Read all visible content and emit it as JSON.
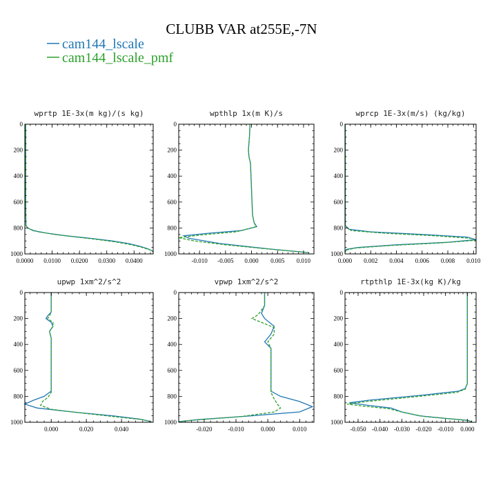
{
  "title": "CLUBB VAR at255E,-7N",
  "colors": {
    "cam144_lscale": "#1f77b4",
    "cam144_lscale_pmf": "#2ca02c"
  },
  "legend": [
    {
      "label": "cam144_lscale",
      "color": "#1f77b4",
      "dash": "solid"
    },
    {
      "label": "cam144_lscale_pmf",
      "color": "#2ca02c",
      "dash": "dashed"
    }
  ],
  "chart_data": [
    {
      "type": "line",
      "title": "wprtp  1E-3x(m kg)/(s kg)",
      "xlim": [
        0,
        0.047
      ],
      "ylim": [
        1000,
        0
      ],
      "xticks": [
        0,
        0.01,
        0.02,
        0.03,
        0.04
      ],
      "xtick_labels": [
        "0.0000",
        "0.0100",
        "0.0200",
        "0.0300",
        "0.0400"
      ],
      "yticks": [
        0,
        200,
        400,
        600,
        800,
        1000
      ],
      "ytick_labels": [
        "0",
        "200",
        "400",
        "600",
        "800",
        "1000"
      ],
      "series": [
        {
          "name": "cam144_lscale",
          "points": [
            [
              0.0003,
              0
            ],
            [
              0.0003,
              200
            ],
            [
              0.0003,
              400
            ],
            [
              0.0003,
              600
            ],
            [
              0.0004,
              780
            ],
            [
              0.001,
              800
            ],
            [
              0.003,
              820
            ],
            [
              0.008,
              840
            ],
            [
              0.015,
              860
            ],
            [
              0.024,
              880
            ],
            [
              0.032,
              900
            ],
            [
              0.038,
              920
            ],
            [
              0.042,
              940
            ],
            [
              0.045,
              960
            ],
            [
              0.047,
              980
            ]
          ]
        },
        {
          "name": "cam144_lscale_pmf",
          "points": [
            [
              0.0003,
              0
            ],
            [
              0.0003,
              200
            ],
            [
              0.0003,
              400
            ],
            [
              0.0003,
              600
            ],
            [
              0.0004,
              790
            ],
            [
              0.002,
              810
            ],
            [
              0.005,
              830
            ],
            [
              0.011,
              850
            ],
            [
              0.019,
              870
            ],
            [
              0.027,
              890
            ],
            [
              0.034,
              910
            ],
            [
              0.039,
              930
            ],
            [
              0.043,
              950
            ],
            [
              0.046,
              970
            ],
            [
              0.047,
              985
            ]
          ]
        }
      ]
    },
    {
      "type": "line",
      "title": "wpthlp  1x(m K)/s",
      "xlim": [
        -0.014,
        0.012
      ],
      "ylim": [
        1000,
        0
      ],
      "xticks": [
        -0.01,
        -0.005,
        0,
        0.005,
        0.01
      ],
      "xtick_labels": [
        "-0.010",
        "-0.005",
        "0.000",
        "0.005",
        "0.010"
      ],
      "yticks": [
        0,
        200,
        400,
        600,
        800,
        1000
      ],
      "ytick_labels": [
        "0",
        "200",
        "400",
        "600",
        "800",
        "1000"
      ],
      "series": [
        {
          "name": "cam144_lscale",
          "points": [
            [
              -0.0003,
              0
            ],
            [
              -0.0004,
              100
            ],
            [
              -0.0006,
              200
            ],
            [
              -0.0005,
              250
            ],
            [
              -0.0002,
              300
            ],
            [
              0,
              500
            ],
            [
              0.0002,
              700
            ],
            [
              0.0005,
              760
            ],
            [
              0.001,
              790
            ],
            [
              -0.002,
              820
            ],
            [
              -0.008,
              840
            ],
            [
              -0.013,
              860
            ],
            [
              -0.012,
              880
            ],
            [
              -0.006,
              920
            ],
            [
              0.003,
              960
            ],
            [
              0.011,
              990
            ]
          ]
        },
        {
          "name": "cam144_lscale_pmf",
          "points": [
            [
              -0.0003,
              0
            ],
            [
              -0.0004,
              100
            ],
            [
              -0.0006,
              200
            ],
            [
              -0.0005,
              250
            ],
            [
              -0.0002,
              300
            ],
            [
              0,
              500
            ],
            [
              0.0002,
              700
            ],
            [
              0.0005,
              760
            ],
            [
              0.0009,
              790
            ],
            [
              -0.003,
              830
            ],
            [
              -0.01,
              855
            ],
            [
              -0.014,
              875
            ],
            [
              -0.011,
              900
            ],
            [
              -0.005,
              930
            ],
            [
              0.004,
              965
            ],
            [
              0.011,
              990
            ]
          ]
        }
      ]
    },
    {
      "type": "line",
      "title": "wprcp  1E-3x(m/s) (kg/kg)",
      "xlim": [
        0,
        0.0102
      ],
      "ylim": [
        1000,
        0
      ],
      "xticks": [
        0,
        0.002,
        0.004,
        0.006,
        0.008,
        0.01
      ],
      "xtick_labels": [
        "0.000",
        "0.002",
        "0.004",
        "0.006",
        "0.008",
        "0.010"
      ],
      "yticks": [
        0,
        200,
        400,
        600,
        800,
        1000
      ],
      "ytick_labels": [
        "0",
        "200",
        "400",
        "600",
        "800",
        "1000"
      ],
      "series": [
        {
          "name": "cam144_lscale",
          "points": [
            [
              2e-05,
              0
            ],
            [
              2e-05,
              400
            ],
            [
              2e-05,
              780
            ],
            [
              0.0003,
              810
            ],
            [
              0.002,
              830
            ],
            [
              0.006,
              850
            ],
            [
              0.0095,
              870
            ],
            [
              0.0102,
              890
            ],
            [
              0.008,
              910
            ],
            [
              0.004,
              930
            ],
            [
              0.001,
              950
            ],
            [
              0.0001,
              965
            ],
            [
              0,
              990
            ]
          ]
        },
        {
          "name": "cam144_lscale_pmf",
          "points": [
            [
              2e-05,
              0
            ],
            [
              2e-05,
              400
            ],
            [
              2e-05,
              790
            ],
            [
              0.0005,
              820
            ],
            [
              0.003,
              840
            ],
            [
              0.007,
              860
            ],
            [
              0.0098,
              880
            ],
            [
              0.0101,
              895
            ],
            [
              0.0075,
              915
            ],
            [
              0.0035,
              935
            ],
            [
              0.0008,
              955
            ],
            [
              0.0001,
              970
            ],
            [
              0,
              990
            ]
          ]
        }
      ]
    },
    {
      "type": "line",
      "title": "upwp  1xm^2/s^2",
      "xlim": [
        -0.015,
        0.058
      ],
      "ylim": [
        1000,
        0
      ],
      "xticks": [
        0,
        0.02,
        0.04
      ],
      "xtick_labels": [
        "0.000",
        "0.020",
        "0.040"
      ],
      "yticks": [
        0,
        200,
        400,
        600,
        800,
        1000
      ],
      "ytick_labels": [
        "0",
        "200",
        "400",
        "600",
        "800",
        "1000"
      ],
      "series": [
        {
          "name": "cam144_lscale",
          "points": [
            [
              0,
              0
            ],
            [
              0,
              150
            ],
            [
              -0.002,
              180
            ],
            [
              -0.003,
              200
            ],
            [
              0,
              230
            ],
            [
              0.001,
              260
            ],
            [
              -0.001,
              300
            ],
            [
              0,
              350
            ],
            [
              0,
              600
            ],
            [
              0,
              760
            ],
            [
              -0.004,
              800
            ],
            [
              -0.01,
              830
            ],
            [
              -0.015,
              860
            ],
            [
              -0.008,
              890
            ],
            [
              0.012,
              920
            ],
            [
              0.035,
              950
            ],
            [
              0.05,
              975
            ],
            [
              0.057,
              995
            ]
          ]
        },
        {
          "name": "cam144_lscale_pmf",
          "points": [
            [
              0,
              0
            ],
            [
              0,
              150
            ],
            [
              -0.001,
              180
            ],
            [
              -0.002,
              200
            ],
            [
              0.001,
              230
            ],
            [
              0.001,
              260
            ],
            [
              -0.001,
              300
            ],
            [
              0,
              350
            ],
            [
              0,
              600
            ],
            [
              0,
              770
            ],
            [
              -0.002,
              810
            ],
            [
              -0.005,
              840
            ],
            [
              -0.006,
              870
            ],
            [
              0,
              900
            ],
            [
              0.018,
              930
            ],
            [
              0.038,
              960
            ],
            [
              0.052,
              980
            ],
            [
              0.057,
              995
            ]
          ]
        }
      ]
    },
    {
      "type": "line",
      "title": "vpwp  1xm^2/s^2",
      "xlim": [
        -0.028,
        0.0145
      ],
      "ylim": [
        1000,
        0
      ],
      "xticks": [
        -0.02,
        -0.01,
        0,
        0.01
      ],
      "xtick_labels": [
        "-0.020",
        "-0.010",
        "0.000",
        "0.010"
      ],
      "yticks": [
        0,
        200,
        400,
        600,
        800,
        1000
      ],
      "ytick_labels": [
        "0",
        "200",
        "400",
        "600",
        "800",
        "1000"
      ],
      "series": [
        {
          "name": "cam144_lscale",
          "points": [
            [
              -0.001,
              0
            ],
            [
              -0.001,
              100
            ],
            [
              -0.002,
              160
            ],
            [
              -0.001,
              200
            ],
            [
              0.002,
              260
            ],
            [
              0.001,
              320
            ],
            [
              -0.001,
              380
            ],
            [
              0.001,
              430
            ],
            [
              0.001,
              600
            ],
            [
              0.001,
              760
            ],
            [
              0.004,
              800
            ],
            [
              0.01,
              840
            ],
            [
              0.014,
              880
            ],
            [
              0.01,
              920
            ],
            [
              -0.005,
              950
            ],
            [
              -0.022,
              980
            ],
            [
              -0.028,
              995
            ]
          ]
        },
        {
          "name": "cam144_lscale_pmf",
          "points": [
            [
              -0.001,
              0
            ],
            [
              -0.001,
              100
            ],
            [
              -0.003,
              170
            ],
            [
              -0.005,
              200
            ],
            [
              0.002,
              270
            ],
            [
              0.002,
              320
            ],
            [
              0,
              380
            ],
            [
              0.001,
              430
            ],
            [
              0.001,
              600
            ],
            [
              0.001,
              770
            ],
            [
              0.002,
              820
            ],
            [
              0.003,
              860
            ],
            [
              0.004,
              890
            ],
            [
              0.002,
              920
            ],
            [
              -0.008,
              955
            ],
            [
              -0.024,
              985
            ],
            [
              -0.028,
              995
            ]
          ]
        }
      ]
    },
    {
      "type": "line",
      "title": "rtpthlp  1E-3x(kg K)/kg",
      "xlim": [
        -0.056,
        0.004
      ],
      "ylim": [
        1000,
        0
      ],
      "xticks": [
        -0.05,
        -0.04,
        -0.03,
        -0.02,
        -0.01,
        0
      ],
      "xtick_labels": [
        "-0.050",
        "-0.040",
        "-0.030",
        "-0.020",
        "-0.010",
        "0.000"
      ],
      "yticks": [
        0,
        200,
        400,
        600,
        800,
        1000
      ],
      "ytick_labels": [
        "0",
        "200",
        "400",
        "600",
        "800",
        "1000"
      ],
      "series": [
        {
          "name": "cam144_lscale",
          "points": [
            [
              0,
              0
            ],
            [
              0,
              400
            ],
            [
              0,
              700
            ],
            [
              -0.001,
              740
            ],
            [
              -0.004,
              760
            ],
            [
              -0.02,
              790
            ],
            [
              -0.045,
              830
            ],
            [
              -0.054,
              850
            ],
            [
              -0.045,
              870
            ],
            [
              -0.035,
              890
            ],
            [
              -0.03,
              920
            ],
            [
              -0.022,
              950
            ],
            [
              -0.01,
              970
            ],
            [
              0,
              985
            ],
            [
              0.002,
              995
            ]
          ]
        },
        {
          "name": "cam144_lscale_pmf",
          "points": [
            [
              0,
              0
            ],
            [
              0,
              400
            ],
            [
              0,
              700
            ],
            [
              -0.001,
              745
            ],
            [
              -0.005,
              770
            ],
            [
              -0.022,
              800
            ],
            [
              -0.046,
              840
            ],
            [
              -0.055,
              860
            ],
            [
              -0.048,
              875
            ],
            [
              -0.036,
              895
            ],
            [
              -0.029,
              925
            ],
            [
              -0.02,
              955
            ],
            [
              -0.009,
              972
            ],
            [
              0,
              985
            ],
            [
              0.002,
              995
            ]
          ]
        }
      ]
    }
  ]
}
